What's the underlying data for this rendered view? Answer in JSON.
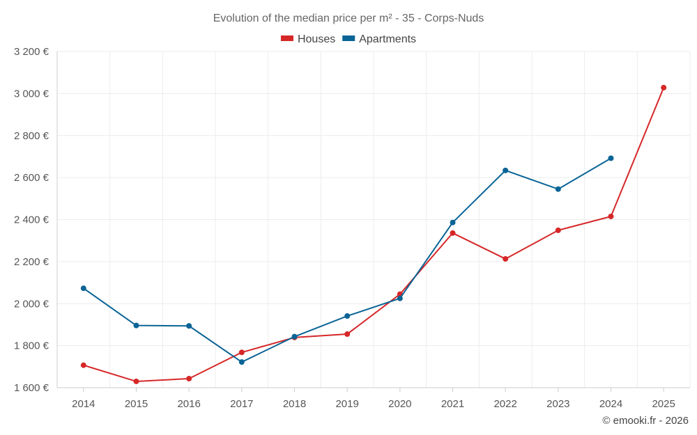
{
  "chart_data": {
    "type": "line",
    "title": "Evolution of the median price per m² - 35 - Corps-Nuds",
    "categories": [
      "2014",
      "2015",
      "2016",
      "2017",
      "2018",
      "2019",
      "2020",
      "2021",
      "2022",
      "2023",
      "2024",
      "2025"
    ],
    "series": [
      {
        "name": "Houses",
        "color": "#d62728",
        "values": [
          1707,
          1630,
          1643,
          1768,
          1839,
          1855,
          2045,
          2336,
          2213,
          2349,
          2415,
          3028
        ]
      },
      {
        "name": "Apartments",
        "color": "#0a6496",
        "values": [
          2073,
          1896,
          1894,
          1722,
          1843,
          1941,
          2025,
          2386,
          2634,
          2545,
          2692,
          null
        ]
      }
    ],
    "ylim": [
      1600,
      3200
    ],
    "yticks": [
      1600,
      1800,
      2000,
      2200,
      2400,
      2600,
      2800,
      3000,
      3200
    ],
    "ytick_labels": [
      "1 600 €",
      "1 800 €",
      "2 000 €",
      "2 200 €",
      "2 400 €",
      "2 600 €",
      "2 800 €",
      "3 000 €",
      "3 200 €"
    ],
    "xlabel": "",
    "ylabel": "",
    "legend_position": "top-center",
    "grid": true
  },
  "credit": "© emooki.fr - 2026"
}
